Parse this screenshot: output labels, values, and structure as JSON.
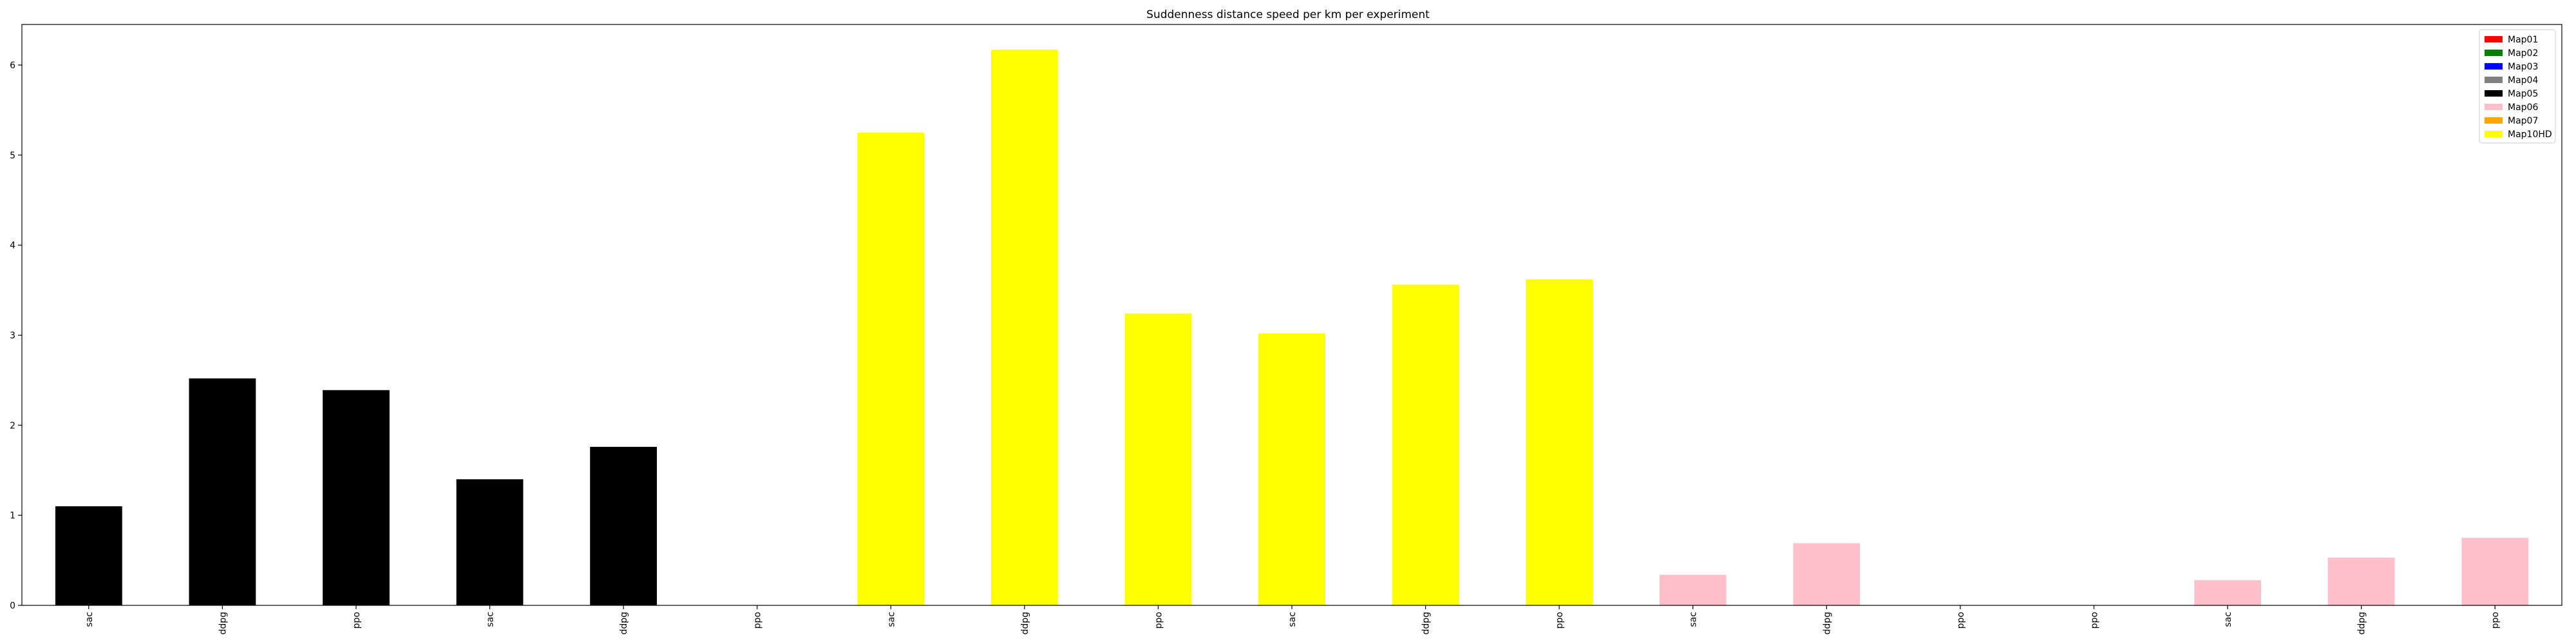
{
  "chart_data": {
    "type": "bar",
    "title": "Suddenness distance speed per km per experiment",
    "xlabel": "",
    "ylabel": "",
    "ylim": [
      0,
      6.45
    ],
    "yticks": [
      0,
      1,
      2,
      3,
      4,
      5,
      6
    ],
    "ytick_labels": [
      "0",
      "1",
      "2",
      "3",
      "4",
      "5",
      "6"
    ],
    "categories": [
      "sac",
      "ddpg",
      "ppo",
      "sac",
      "ddpg",
      "ppo",
      "sac",
      "ddpg",
      "ppo",
      "sac",
      "ddpg",
      "ppo",
      "sac",
      "ddpg",
      "ppo",
      "ppo",
      "sac",
      "ddpg",
      "ppo"
    ],
    "values": [
      1.1,
      2.52,
      2.39,
      1.4,
      1.76,
      0,
      5.25,
      6.17,
      3.24,
      3.02,
      3.56,
      3.62,
      0.34,
      0.69,
      0,
      0,
      0.28,
      0.53,
      0.75
    ],
    "bar_map": [
      "Map05",
      "Map05",
      "Map05",
      "Map05",
      "Map05",
      "Map05",
      "Map10HD",
      "Map10HD",
      "Map10HD",
      "Map10HD",
      "Map10HD",
      "Map10HD",
      "Map06",
      "Map06",
      "Map06",
      "Map06",
      "Map06",
      "Map06",
      "Map06"
    ],
    "legend": {
      "placement": "top-right",
      "entries": [
        {
          "label": "Map01",
          "color": "#ff0000"
        },
        {
          "label": "Map02",
          "color": "#008000"
        },
        {
          "label": "Map03",
          "color": "#0000ff"
        },
        {
          "label": "Map04",
          "color": "#808080"
        },
        {
          "label": "Map05",
          "color": "#000000"
        },
        {
          "label": "Map06",
          "color": "#ffc0cb"
        },
        {
          "label": "Map07",
          "color": "#ffa500"
        },
        {
          "label": "Map10HD",
          "color": "#ffff00"
        }
      ]
    },
    "grid": false
  }
}
